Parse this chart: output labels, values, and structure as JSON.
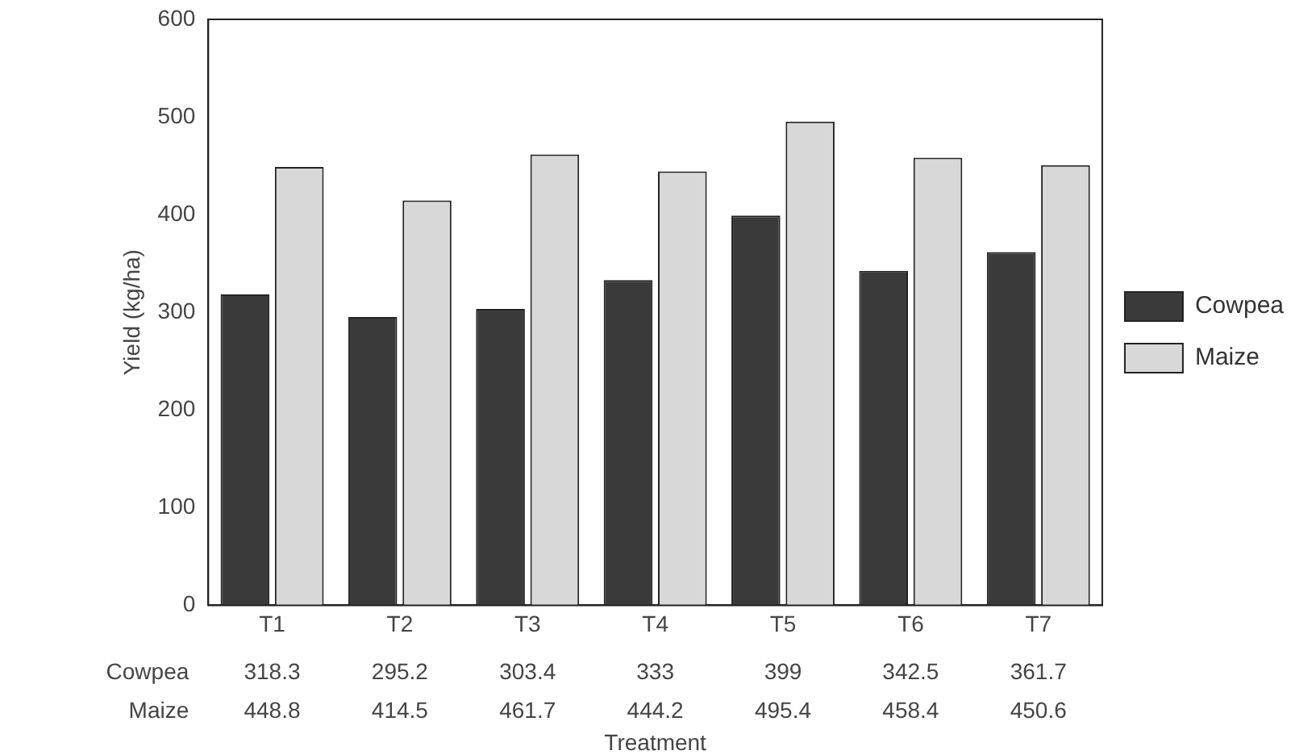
{
  "chart_data": {
    "type": "bar",
    "xlabel": "Treatment",
    "ylabel": "Yield (kg/ha)",
    "categories": [
      "T1",
      "T2",
      "T3",
      "T4",
      "T5",
      "T6",
      "T7"
    ],
    "series": [
      {
        "name": "Cowpea",
        "color": "#3a3a3a",
        "values": [
          318.3,
          295.2,
          303.4,
          333,
          399,
          342.5,
          361.7
        ]
      },
      {
        "name": "Maize",
        "color": "#d8d8d8",
        "values": [
          448.8,
          414.5,
          461.7,
          444.2,
          495.4,
          458.4,
          450.6
        ]
      }
    ],
    "ylim": [
      0,
      600
    ],
    "yticks": [
      0,
      100,
      200,
      300,
      400,
      500,
      600
    ],
    "grid": false,
    "legend": "right",
    "data_labels": true
  }
}
